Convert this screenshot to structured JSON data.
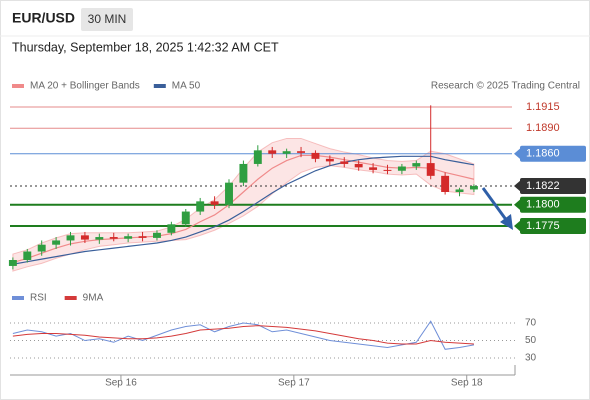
{
  "header": {
    "symbol": "EUR/USD",
    "timeframe": "30 MIN",
    "datetime": "Thursday, September 18, 2025 1:42:32 AM CET",
    "credit": "Research © 2025 Trading Central"
  },
  "chart_data": [
    {
      "type": "candlestick",
      "x": [
        -15,
        -13,
        -11,
        -9,
        -7,
        -5,
        -3,
        -1,
        1,
        3,
        5,
        7,
        9,
        11,
        13,
        15,
        17,
        19,
        21,
        23,
        25,
        27,
        29,
        31,
        33,
        35,
        37,
        39,
        41,
        43,
        45,
        47,
        49
      ],
      "xlim": [
        -15.4,
        54.7
      ],
      "xticks": [
        {
          "value": 0,
          "label": "Sep 16"
        },
        {
          "value": 24,
          "label": "Sep 17"
        },
        {
          "value": 48,
          "label": "Sep 18"
        }
      ],
      "ylim": [
        1.172,
        1.193
      ],
      "up_color": "#2f9e41",
      "down_color": "#d42a2a",
      "open": [
        1.1728,
        1.1735,
        1.1745,
        1.1753,
        1.1758,
        1.1764,
        1.1759,
        1.1762,
        1.176,
        1.1763,
        1.1761,
        1.1767,
        1.1777,
        1.1792,
        1.1804,
        1.18,
        1.1826,
        1.1848,
        1.1864,
        1.186,
        1.1863,
        1.1861,
        1.1854,
        1.1851,
        1.1848,
        1.1844,
        1.1841,
        1.184,
        1.1845,
        1.1849,
        1.1834,
        1.1815,
        1.1818
      ],
      "high": [
        1.1738,
        1.1748,
        1.1758,
        1.1762,
        1.1768,
        1.1768,
        1.1766,
        1.1767,
        1.1766,
        1.1768,
        1.177,
        1.178,
        1.1795,
        1.1808,
        1.181,
        1.183,
        1.1852,
        1.187,
        1.1868,
        1.1866,
        1.1868,
        1.1864,
        1.1858,
        1.1856,
        1.1852,
        1.1849,
        1.1847,
        1.1848,
        1.1852,
        1.1917,
        1.1838,
        1.182,
        1.1824
      ],
      "low": [
        1.1724,
        1.1732,
        1.174,
        1.1748,
        1.1752,
        1.1755,
        1.1754,
        1.1757,
        1.1756,
        1.1757,
        1.1758,
        1.1764,
        1.1774,
        1.1788,
        1.1795,
        1.1796,
        1.1822,
        1.1845,
        1.1855,
        1.1855,
        1.1856,
        1.185,
        1.1846,
        1.1844,
        1.184,
        1.1837,
        1.1836,
        1.1836,
        1.1841,
        1.183,
        1.1812,
        1.181,
        1.1815
      ],
      "close": [
        1.1735,
        1.1745,
        1.1753,
        1.1758,
        1.1764,
        1.1759,
        1.1762,
        1.176,
        1.1763,
        1.1761,
        1.1767,
        1.1777,
        1.1792,
        1.1804,
        1.18,
        1.1826,
        1.1848,
        1.1864,
        1.186,
        1.1863,
        1.1861,
        1.1854,
        1.1851,
        1.1848,
        1.1844,
        1.1841,
        1.184,
        1.1845,
        1.1849,
        1.1834,
        1.1815,
        1.1818,
        1.1822
      ],
      "series": [
        {
          "name": "MA 20 + Bollinger Bands",
          "color": "#f08a8a",
          "values": [
            1.1732,
            1.1737,
            1.1743,
            1.1749,
            1.1754,
            1.1757,
            1.1759,
            1.176,
            1.1761,
            1.1762,
            1.1763,
            1.1766,
            1.1771,
            1.178,
            1.1788,
            1.18,
            1.1815,
            1.183,
            1.1843,
            1.1852,
            1.1858,
            1.1858,
            1.1856,
            1.1853,
            1.185,
            1.1847,
            1.1844,
            1.1843,
            1.1844,
            1.1843,
            1.1838,
            1.1834,
            1.183
          ],
          "upper": [
            1.1742,
            1.1747,
            1.1755,
            1.1761,
            1.1766,
            1.1767,
            1.1767,
            1.1767,
            1.1767,
            1.1768,
            1.1769,
            1.1774,
            1.1783,
            1.1796,
            1.1806,
            1.1822,
            1.1843,
            1.1862,
            1.1873,
            1.1878,
            1.1878,
            1.1872,
            1.1866,
            1.1862,
            1.1859,
            1.1855,
            1.1852,
            1.1851,
            1.1852,
            1.1863,
            1.186,
            1.1854,
            1.1848
          ],
          "lower": [
            1.1722,
            1.1727,
            1.1731,
            1.1737,
            1.1742,
            1.1747,
            1.1751,
            1.1753,
            1.1755,
            1.1756,
            1.1757,
            1.1758,
            1.1759,
            1.1764,
            1.177,
            1.1778,
            1.1787,
            1.1798,
            1.1813,
            1.1826,
            1.1838,
            1.1844,
            1.1846,
            1.1844,
            1.1841,
            1.1839,
            1.1836,
            1.1835,
            1.1836,
            1.1823,
            1.1816,
            1.1814,
            1.1812
          ]
        },
        {
          "name": "MA 50",
          "color": "#3a5f9a",
          "values": [
            1.173,
            1.1733,
            1.1736,
            1.1739,
            1.1742,
            1.1745,
            1.1747,
            1.1749,
            1.1751,
            1.1753,
            1.1755,
            1.1758,
            1.1762,
            1.1768,
            1.1774,
            1.1782,
            1.1792,
            1.1803,
            1.1814,
            1.1824,
            1.1832,
            1.184,
            1.1846,
            1.185,
            1.1853,
            1.1855,
            1.1856,
            1.1857,
            1.1857,
            1.1857,
            1.1853,
            1.185,
            1.1847
          ]
        }
      ],
      "levels": [
        {
          "value": 1.1915,
          "color": "#e58b8b",
          "style": "text"
        },
        {
          "value": 1.189,
          "label": "1.1890",
          "color": "#e58b8b",
          "style": "text"
        },
        {
          "value": 1.186,
          "label": "1.1860",
          "color": "#5b8dd6",
          "style": "box"
        },
        {
          "value": 1.1822,
          "color": "#333333",
          "style": "dotted"
        },
        {
          "value": 1.18,
          "label": "1.1800",
          "color": "#1e7d1e",
          "style": "box"
        },
        {
          "value": 1.1775,
          "color": "#1e7d1e",
          "style": "box"
        }
      ]
    },
    {
      "type": "line",
      "ylim": [
        18.6,
        82.6
      ],
      "yticks": [
        30,
        50,
        70
      ],
      "grid": true,
      "series": [
        {
          "name": "RSI",
          "color": "#6f8fd8",
          "values": [
            58,
            62,
            60,
            55,
            58,
            50,
            52,
            48,
            55,
            50,
            56,
            62,
            66,
            68,
            60,
            66,
            70,
            68,
            60,
            62,
            58,
            54,
            50,
            48,
            46,
            44,
            42,
            45,
            48,
            72,
            40,
            42,
            45
          ]
        },
        {
          "name": "9MA",
          "color": "#d43a3a",
          "values": [
            55,
            57,
            58,
            58,
            57,
            56,
            54,
            53,
            52,
            52,
            53,
            55,
            58,
            62,
            63,
            64,
            66,
            67,
            66,
            65,
            63,
            61,
            58,
            55,
            52,
            50,
            47,
            46,
            46,
            50,
            48,
            47,
            46
          ]
        }
      ]
    }
  ]
}
